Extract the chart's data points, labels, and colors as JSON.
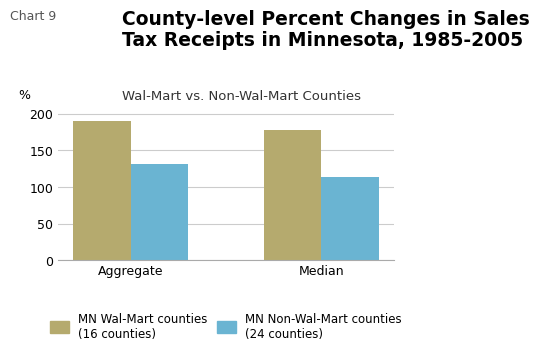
{
  "title_chart_label": "Chart 9",
  "title_main": "County-level Percent Changes in Sales\nTax Receipts in Minnesota, 1985-2005",
  "title_sub": "Wal-Mart vs. Non-Wal-Mart Counties",
  "ylabel": "%",
  "categories": [
    "Aggregate",
    "Median"
  ],
  "walmart_values": [
    190,
    178
  ],
  "nonwalmart_values": [
    132,
    113
  ],
  "walmart_color": "#b5aa6e",
  "nonwalmart_color": "#6ab4d2",
  "ylim": [
    0,
    210
  ],
  "yticks": [
    0,
    50,
    100,
    150,
    200
  ],
  "bar_width": 0.3,
  "legend_walmart": "MN Wal-Mart counties\n(16 counties)",
  "legend_nonwalmart": "MN Non-Wal-Mart counties\n(24 counties)",
  "background_color": "#ffffff",
  "grid_color": "#cccccc",
  "title_fontsize": 13.5,
  "subtitle_fontsize": 9.5,
  "axis_fontsize": 9,
  "legend_fontsize": 8.5,
  "chart_label_fontsize": 9
}
